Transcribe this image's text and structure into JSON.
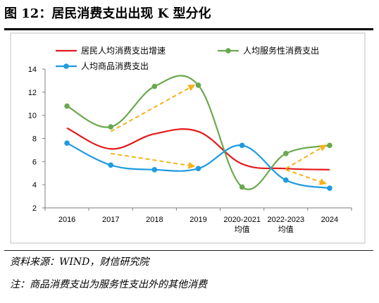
{
  "header": {
    "title": "图 12：居民消费支出出现 K 型分化"
  },
  "footer": {
    "source": "资料来源：WIND，财信研究院",
    "note": "注：商品消费支出为服务性支出外的其他消费"
  },
  "chart_data": {
    "type": "line",
    "categories": [
      "2016",
      "2017",
      "2018",
      "2019",
      "2020-2021\n均值",
      "2022-2023\n均值",
      "2024"
    ],
    "ylim": [
      2,
      14
    ],
    "yticks": [
      2,
      4,
      6,
      8,
      10,
      12,
      14
    ],
    "grid": false,
    "legend_position": "top",
    "series": [
      {
        "name": "居民人均消费支出增速",
        "color": "#e31a1c",
        "marker": false,
        "values": [
          8.9,
          7.1,
          8.4,
          8.6,
          5.8,
          5.4,
          5.3
        ]
      },
      {
        "name": "人均服务性消费支出",
        "color": "#6aa84f",
        "marker": true,
        "values": [
          10.8,
          9.0,
          12.5,
          12.6,
          3.8,
          6.7,
          7.4
        ]
      },
      {
        "name": "人均商品消费支出",
        "color": "#1e9be0",
        "marker": true,
        "values": [
          7.6,
          5.7,
          5.3,
          5.4,
          7.4,
          4.4,
          3.7
        ]
      }
    ],
    "annotations": {
      "arrow_color": "#f5b21a",
      "arrows": [
        {
          "from": [
            "2017",
            8.6
          ],
          "to": [
            "2019",
            12.6
          ]
        },
        {
          "from": [
            "2017",
            6.7
          ],
          "to": [
            "2019",
            5.6
          ]
        },
        {
          "from": [
            "2022-2023\n均值",
            5.4
          ],
          "to": [
            "2024",
            7.4
          ]
        },
        {
          "from": [
            "2022-2023\n均值",
            5.3
          ],
          "to": [
            "2024",
            4.1
          ]
        }
      ]
    }
  }
}
